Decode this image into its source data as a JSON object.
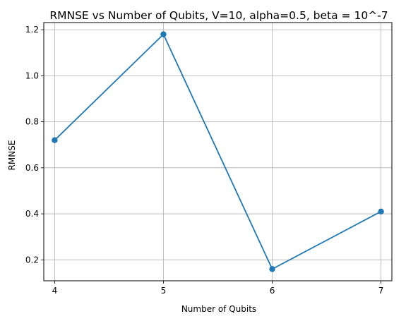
{
  "chart_data": {
    "type": "line",
    "title": "RMNSE vs Number of Qubits, V=10, alpha=0.5, beta = 10^-7",
    "xlabel": "Number of Qubits",
    "ylabel": "RMNSE",
    "x": [
      4,
      5,
      6,
      7
    ],
    "y": [
      0.72,
      1.18,
      0.16,
      0.41
    ],
    "xticks": [
      4,
      5,
      6,
      7
    ],
    "yticks": [
      0.2,
      0.4,
      0.6,
      0.8,
      1.0,
      1.2
    ],
    "ytick_labels": [
      "0.2",
      "0.4",
      "0.6",
      "0.8",
      "1.0",
      "1.2"
    ],
    "xlim": [
      3.9,
      7.1
    ],
    "ylim": [
      0.109,
      1.231
    ],
    "grid": true,
    "marker": "circle",
    "line_color": "#1f77b4"
  }
}
